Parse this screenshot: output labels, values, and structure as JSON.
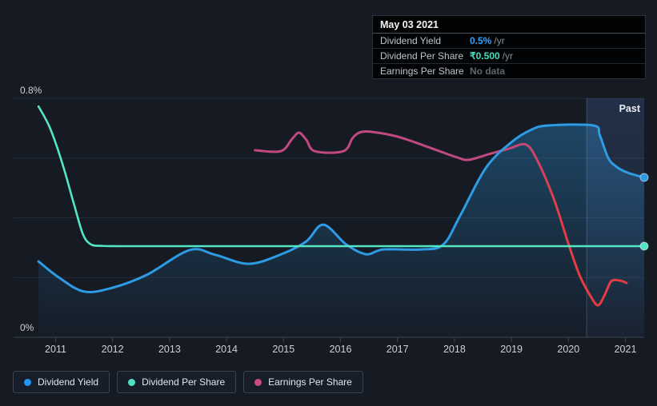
{
  "tooltip": {
    "date": "May 03 2021",
    "rows": [
      {
        "id": "dividend-yield",
        "label": "Dividend Yield",
        "value": "0.5%",
        "suffix": "/yr",
        "value_color": "#3da0f5"
      },
      {
        "id": "dividend-per-share",
        "label": "Dividend Per Share",
        "value": "₹0.500",
        "suffix": "/yr",
        "value_color": "#45e0bf"
      },
      {
        "id": "earnings-per-share",
        "label": "Earnings Per Share",
        "value": "No data",
        "suffix": "",
        "value_color": "#61666d"
      }
    ]
  },
  "legend": [
    {
      "label": "Dividend Yield",
      "color": "#2196f3"
    },
    {
      "label": "Dividend Per Share",
      "color": "#4fe3c4"
    },
    {
      "label": "Earnings Per Share",
      "color": "#cb4a82"
    }
  ],
  "past_label": "Past",
  "colors": {
    "background": "#151a23",
    "grid": "#242b38",
    "axis": "#3f4752",
    "dividend_yield_line": "#2e9be5",
    "dividend_per_share_line": "#53e6c5",
    "earnings_line_start": "#c04a80",
    "earnings_line_end": "#e33c43"
  },
  "chart_data": {
    "type": "line",
    "title": "Dividend history",
    "ylim": [
      0,
      0.8
    ],
    "y_tick_labels": {
      "top": "0.8%",
      "bottom": "0%"
    },
    "x_ticks": [
      2011,
      2012,
      2013,
      2014,
      2015,
      2016,
      2017,
      2018,
      2019,
      2020,
      2021
    ],
    "x_range": [
      2010.6,
      2021.36
    ],
    "past_region": {
      "start": 2020.32,
      "end": 2021.36
    },
    "series": [
      {
        "name": "Dividend Yield",
        "unit": "% per year (left axis)",
        "area_fill": true,
        "end_marker": true,
        "points": [
          [
            2010.7,
            0.254
          ],
          [
            2011.05,
            0.201
          ],
          [
            2011.5,
            0.153
          ],
          [
            2012.0,
            0.166
          ],
          [
            2012.6,
            0.209
          ],
          [
            2013.35,
            0.292
          ],
          [
            2013.8,
            0.276
          ],
          [
            2014.4,
            0.246
          ],
          [
            2015.0,
            0.281
          ],
          [
            2015.4,
            0.321
          ],
          [
            2015.7,
            0.377
          ],
          [
            2016.1,
            0.311
          ],
          [
            2016.45,
            0.278
          ],
          [
            2016.75,
            0.294
          ],
          [
            2017.4,
            0.294
          ],
          [
            2017.8,
            0.31
          ],
          [
            2018.1,
            0.407
          ],
          [
            2018.55,
            0.567
          ],
          [
            2019.0,
            0.653
          ],
          [
            2019.35,
            0.695
          ],
          [
            2019.65,
            0.709
          ],
          [
            2020.44,
            0.709
          ],
          [
            2020.55,
            0.676
          ],
          [
            2020.7,
            0.6
          ],
          [
            2020.85,
            0.57
          ],
          [
            2021.05,
            0.55
          ],
          [
            2021.33,
            0.535
          ]
        ]
      },
      {
        "name": "Dividend Per Share",
        "unit": "₹ per share per year (hidden scale, flat at ₹0.500)",
        "area_fill": false,
        "end_marker": true,
        "points": [
          [
            2010.7,
            0.773
          ],
          [
            2010.9,
            0.701
          ],
          [
            2011.12,
            0.581
          ],
          [
            2011.32,
            0.447
          ],
          [
            2011.48,
            0.345
          ],
          [
            2011.62,
            0.311
          ],
          [
            2011.8,
            0.306
          ],
          [
            2012.1,
            0.305
          ],
          [
            2013.0,
            0.305
          ],
          [
            2015.0,
            0.305
          ],
          [
            2017.0,
            0.305
          ],
          [
            2019.0,
            0.305
          ],
          [
            2021.33,
            0.305
          ]
        ]
      },
      {
        "name": "Earnings Per Share",
        "unit": "hidden scale (ends Dec 2020, no data at cursor)",
        "area_fill": false,
        "end_marker": false,
        "points": [
          [
            2014.5,
            0.626
          ],
          [
            2014.95,
            0.623
          ],
          [
            2015.15,
            0.664
          ],
          [
            2015.27,
            0.685
          ],
          [
            2015.4,
            0.661
          ],
          [
            2015.55,
            0.623
          ],
          [
            2016.05,
            0.623
          ],
          [
            2016.22,
            0.669
          ],
          [
            2016.38,
            0.688
          ],
          [
            2016.65,
            0.685
          ],
          [
            2017.05,
            0.669
          ],
          [
            2017.65,
            0.629
          ],
          [
            2018.05,
            0.602
          ],
          [
            2018.25,
            0.594
          ],
          [
            2018.6,
            0.613
          ],
          [
            2018.95,
            0.631
          ],
          [
            2019.25,
            0.645
          ],
          [
            2019.45,
            0.594
          ],
          [
            2019.75,
            0.46
          ],
          [
            2020.0,
            0.313
          ],
          [
            2020.2,
            0.206
          ],
          [
            2020.4,
            0.134
          ],
          [
            2020.52,
            0.107
          ],
          [
            2020.63,
            0.139
          ],
          [
            2020.75,
            0.187
          ],
          [
            2020.9,
            0.19
          ],
          [
            2021.02,
            0.182
          ]
        ]
      }
    ]
  }
}
